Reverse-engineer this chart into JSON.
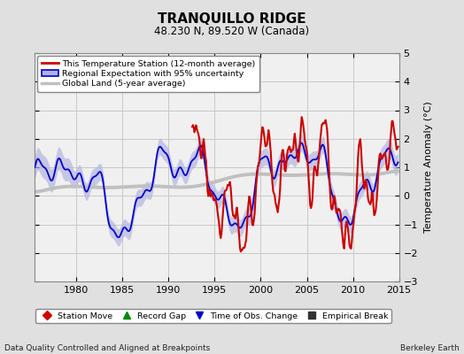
{
  "title": "TRANQUILLO RIDGE",
  "subtitle": "48.230 N, 89.520 W (Canada)",
  "ylabel": "Temperature Anomaly (°C)",
  "xlabel_bottom": "Data Quality Controlled and Aligned at Breakpoints",
  "xlabel_right": "Berkeley Earth",
  "ylim": [
    -3,
    5
  ],
  "xlim": [
    1975.5,
    2015
  ],
  "yticks": [
    -3,
    -2,
    -1,
    0,
    1,
    2,
    3,
    4,
    5
  ],
  "xticks": [
    1980,
    1985,
    1990,
    1995,
    2000,
    2005,
    2010,
    2015
  ],
  "bg_color": "#e0e0e0",
  "plot_bg_color": "#f0f0f0",
  "grid_color": "#c8c8c8",
  "red_color": "#cc0000",
  "blue_color": "#0000cc",
  "blue_fill_color": "#b0b0e0",
  "gray_color": "#c0c0c0",
  "legend_items": [
    {
      "label": "This Temperature Station (12-month average)",
      "color": "#cc0000",
      "lw": 2
    },
    {
      "label": "Regional Expectation with 95% uncertainty",
      "color": "#0000cc",
      "fill": "#b0b0e0",
      "lw": 1.5
    },
    {
      "label": "Global Land (5-year average)",
      "color": "#c0c0c0",
      "lw": 2.5
    }
  ],
  "bottom_legend": [
    {
      "label": "Station Move",
      "marker": "D",
      "color": "#cc0000"
    },
    {
      "label": "Record Gap",
      "marker": "^",
      "color": "#008800"
    },
    {
      "label": "Time of Obs. Change",
      "marker": "v",
      "color": "#0000cc"
    },
    {
      "label": "Empirical Break",
      "marker": "s",
      "color": "#333333"
    }
  ]
}
